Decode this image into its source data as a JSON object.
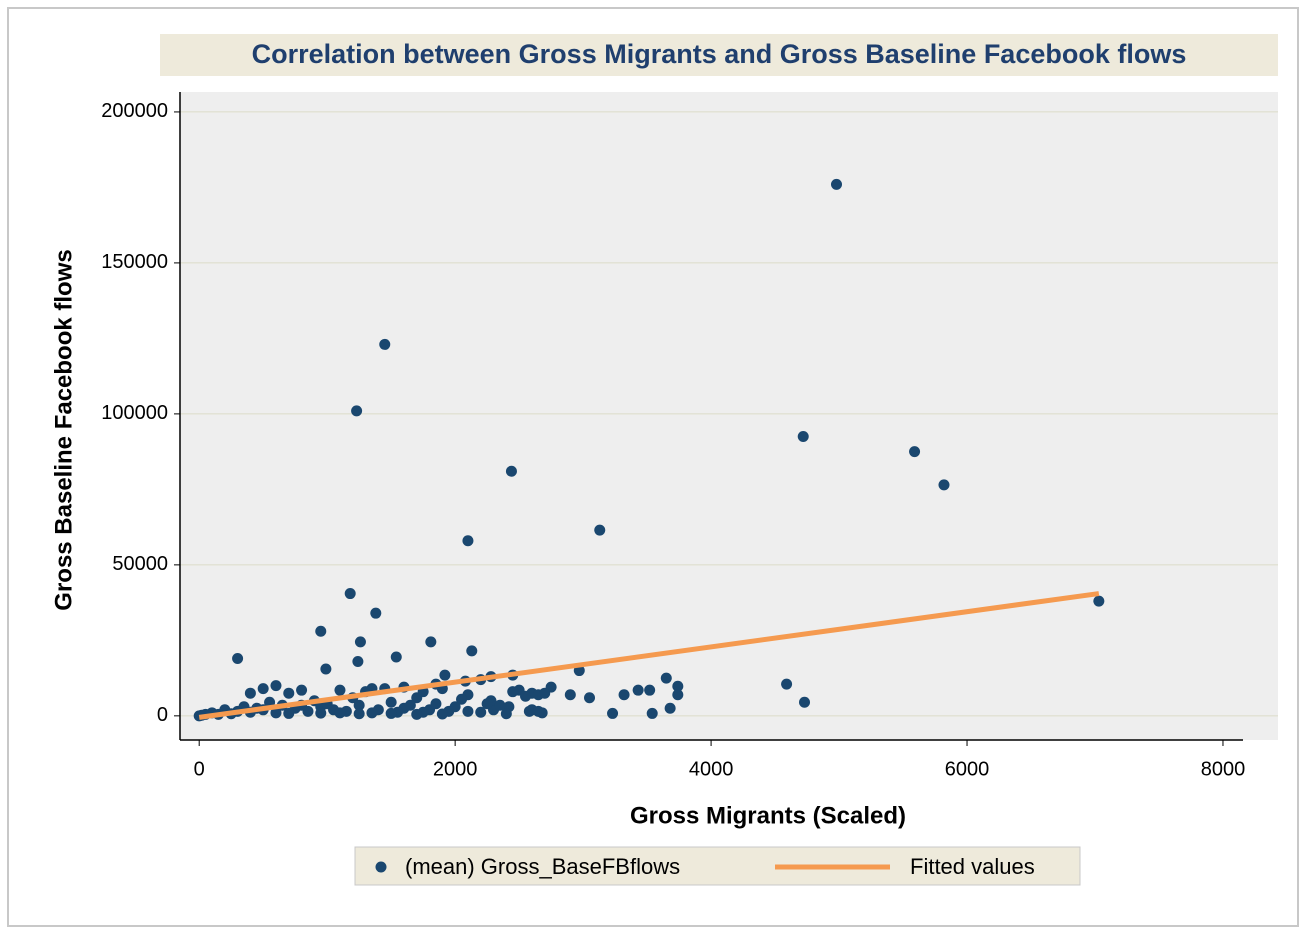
{
  "chart_data": {
    "type": "scatter",
    "title": "Correlation between Gross Migrants and Gross Baseline Facebook flows",
    "xlabel": "Gross Migrants (Scaled)",
    "ylabel": "Gross Baseline Facebook flows",
    "xlim": [
      -150,
      8430
    ],
    "ylim": [
      -8000,
      206600
    ],
    "xticks": [
      0,
      2000,
      4000,
      6000,
      8000
    ],
    "yticks": [
      0,
      50000,
      100000,
      150000,
      200000
    ],
    "grid": true,
    "legend": "bottom",
    "series": [
      {
        "name": "(mean) Gross_BaseFBflows",
        "color": "#1a476f",
        "x": [
          4980,
          1450,
          1230,
          4720,
          5590,
          2440,
          5820,
          3130,
          2100,
          7030,
          1180,
          1380,
          950,
          1260,
          1810,
          2130,
          1540,
          300,
          1240,
          990,
          2970,
          3650,
          1920,
          2280,
          4590,
          3740,
          3520,
          3430,
          2750,
          3320,
          3050,
          2900,
          3740,
          4730,
          3680,
          3230,
          3540,
          2580,
          2680,
          2500,
          2600,
          2650,
          2300,
          2420,
          2280,
          2100,
          2000,
          1800,
          1600,
          1400,
          1700,
          1500,
          1300,
          1350,
          1450,
          1100,
          1200,
          900,
          800,
          700,
          600,
          500,
          400,
          200,
          100,
          50,
          20,
          0,
          150,
          300,
          350,
          450,
          550,
          650,
          750,
          850,
          950,
          1050,
          1150,
          1250,
          1350,
          1550,
          1650,
          1750,
          1850,
          1950,
          2050,
          2200,
          2350,
          2450,
          2550,
          2080,
          1900,
          1750,
          1600,
          1850,
          2200,
          2700,
          2450,
          1000,
          1100,
          250,
          400,
          600,
          700,
          500,
          800,
          950,
          1250,
          1500,
          1700,
          1900,
          2100,
          2250,
          2400,
          2600,
          2650
        ],
        "values": [
          176000,
          123000,
          101000,
          92500,
          87500,
          81000,
          76500,
          61500,
          58000,
          38000,
          40500,
          34000,
          28000,
          24500,
          24500,
          21500,
          19500,
          19000,
          18000,
          15500,
          15000,
          12500,
          13500,
          13000,
          10500,
          9800,
          8500,
          8500,
          9500,
          7000,
          6000,
          7000,
          7000,
          4500,
          2500,
          800,
          800,
          1500,
          1000,
          8500,
          7500,
          7000,
          2000,
          3000,
          5000,
          7000,
          3000,
          2000,
          2500,
          2000,
          6000,
          4500,
          8000,
          9000,
          9000,
          8500,
          6000,
          5000,
          8500,
          7500,
          10000,
          9000,
          7500,
          2000,
          1000,
          500,
          200,
          0,
          500,
          1500,
          3000,
          2500,
          4500,
          3500,
          2500,
          1500,
          3000,
          2000,
          1500,
          3500,
          1000,
          1200,
          3500,
          1200,
          4000,
          1500,
          5500,
          1200,
          3500,
          8000,
          6500,
          11500,
          9000,
          8000,
          9500,
          10500,
          12000,
          7500,
          13500,
          4000,
          1000,
          700,
          1200,
          1000,
          800,
          2000,
          3500,
          900,
          700,
          800,
          500,
          600,
          1500,
          4000,
          700,
          2000,
          1500
        ]
      },
      {
        "name": "Fitted values",
        "type": "line",
        "color": "#f59a4f",
        "x": [
          0,
          7030
        ],
        "values": [
          -500,
          40500
        ]
      }
    ]
  }
}
